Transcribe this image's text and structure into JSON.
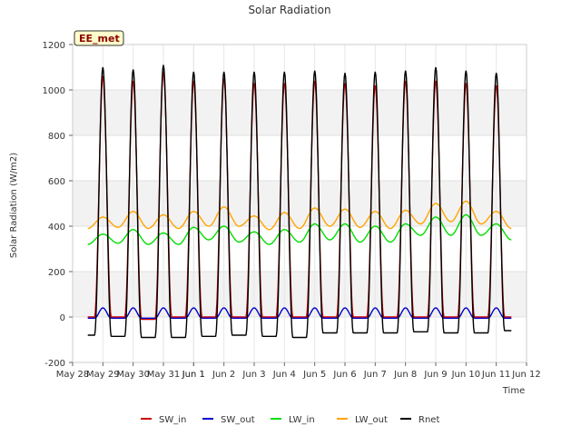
{
  "chart_data": {
    "type": "line",
    "title": "Solar Radiation",
    "xlabel": "Time",
    "ylabel": "Solar Radiation (W/m2)",
    "ylim": [
      -200,
      1200
    ],
    "yticks": [
      -200,
      0,
      200,
      400,
      600,
      800,
      1000,
      1200
    ],
    "xlim": [
      "2023-05-28",
      "2023-06-12"
    ],
    "xtick_labels": [
      "May 28",
      "May 29",
      "May 30",
      "May 31",
      "Jun 1",
      "Jun 1",
      "Jun 2",
      "Jun 3",
      "Jun 4",
      "Jun 5",
      "Jun 6",
      "Jun 7",
      "Jun 8",
      "Jun 9",
      "Jun 10",
      "Jun 11",
      "Jun 12"
    ],
    "xtick_positions": [
      "2023-05-28",
      "2023-05-29",
      "2023-05-30",
      "2023-05-31",
      "2023-06-01",
      "2023-06-01",
      "2023-06-02",
      "2023-06-03",
      "2023-06-04",
      "2023-06-05",
      "2023-06-06",
      "2023-06-07",
      "2023-06-08",
      "2023-06-09",
      "2023-06-10",
      "2023-06-11",
      "2023-06-12"
    ],
    "grid": true,
    "legend_position": "bottom",
    "annotation": "EE_met",
    "series": [
      {
        "name": "SW_in",
        "color": "#cc0000",
        "points": [
          [
            "2023-05-28 12:00",
            0
          ],
          [
            "2023-05-29 00:00",
            1060
          ],
          [
            "2023-05-29 12:00",
            0
          ],
          [
            "2023-05-30 00:00",
            1040
          ],
          [
            "2023-05-30 12:00",
            -10
          ],
          [
            "2023-05-31 00:00",
            1080
          ],
          [
            "2023-05-31 12:00",
            0
          ],
          [
            "2023-06-01 00:00",
            1040
          ],
          [
            "2023-06-01 12:00",
            0
          ],
          [
            "2023-06-02 00:00",
            1050
          ],
          [
            "2023-06-02 12:00",
            0
          ],
          [
            "2023-06-03 00:00",
            1030
          ],
          [
            "2023-06-03 12:00",
            0
          ],
          [
            "2023-06-04 00:00",
            1030
          ],
          [
            "2023-06-04 12:00",
            0
          ],
          [
            "2023-06-05 00:00",
            1040
          ],
          [
            "2023-06-05 12:00",
            0
          ],
          [
            "2023-06-06 00:00",
            1030
          ],
          [
            "2023-06-06 12:00",
            0
          ],
          [
            "2023-06-07 00:00",
            1020
          ],
          [
            "2023-06-07 12:00",
            0
          ],
          [
            "2023-06-08 00:00",
            1040
          ],
          [
            "2023-06-08 12:00",
            0
          ],
          [
            "2023-06-09 00:00",
            1040
          ],
          [
            "2023-06-09 12:00",
            0
          ],
          [
            "2023-06-10 00:00",
            1030
          ],
          [
            "2023-06-10 12:00",
            0
          ],
          [
            "2023-06-11 00:00",
            1020
          ],
          [
            "2023-06-11 12:00",
            0
          ]
        ]
      },
      {
        "name": "SW_out",
        "color": "#0000cc",
        "points": [
          [
            "2023-05-28 12:00",
            -5
          ],
          [
            "2023-05-29 00:00",
            40
          ],
          [
            "2023-05-29 12:00",
            -5
          ],
          [
            "2023-05-30 00:00",
            40
          ],
          [
            "2023-05-30 12:00",
            -5
          ],
          [
            "2023-05-31 00:00",
            40
          ],
          [
            "2023-05-31 12:00",
            -5
          ],
          [
            "2023-06-01 00:00",
            40
          ],
          [
            "2023-06-01 12:00",
            -5
          ],
          [
            "2023-06-02 00:00",
            40
          ],
          [
            "2023-06-02 12:00",
            -5
          ],
          [
            "2023-06-03 00:00",
            40
          ],
          [
            "2023-06-03 12:00",
            -5
          ],
          [
            "2023-06-04 00:00",
            40
          ],
          [
            "2023-06-04 12:00",
            -5
          ],
          [
            "2023-06-05 00:00",
            40
          ],
          [
            "2023-06-05 12:00",
            -5
          ],
          [
            "2023-06-06 00:00",
            40
          ],
          [
            "2023-06-06 12:00",
            -5
          ],
          [
            "2023-06-07 00:00",
            40
          ],
          [
            "2023-06-07 12:00",
            -5
          ],
          [
            "2023-06-08 00:00",
            40
          ],
          [
            "2023-06-08 12:00",
            -5
          ],
          [
            "2023-06-09 00:00",
            40
          ],
          [
            "2023-06-09 12:00",
            -5
          ],
          [
            "2023-06-10 00:00",
            40
          ],
          [
            "2023-06-10 12:00",
            -5
          ],
          [
            "2023-06-11 00:00",
            40
          ],
          [
            "2023-06-11 12:00",
            -5
          ]
        ]
      },
      {
        "name": "LW_in",
        "color": "#00dd00",
        "points": [
          [
            "2023-05-28 12:00",
            320
          ],
          [
            "2023-05-29 00:00",
            365
          ],
          [
            "2023-05-29 12:00",
            325
          ],
          [
            "2023-05-30 00:00",
            385
          ],
          [
            "2023-05-30 12:00",
            320
          ],
          [
            "2023-05-31 00:00",
            370
          ],
          [
            "2023-05-31 12:00",
            320
          ],
          [
            "2023-06-01 00:00",
            395
          ],
          [
            "2023-06-01 12:00",
            340
          ],
          [
            "2023-06-02 00:00",
            400
          ],
          [
            "2023-06-02 12:00",
            330
          ],
          [
            "2023-06-03 00:00",
            375
          ],
          [
            "2023-06-03 12:00",
            320
          ],
          [
            "2023-06-04 00:00",
            385
          ],
          [
            "2023-06-04 12:00",
            330
          ],
          [
            "2023-06-05 00:00",
            410
          ],
          [
            "2023-06-05 12:00",
            340
          ],
          [
            "2023-06-06 00:00",
            410
          ],
          [
            "2023-06-06 12:00",
            330
          ],
          [
            "2023-06-07 00:00",
            400
          ],
          [
            "2023-06-07 12:00",
            330
          ],
          [
            "2023-06-08 00:00",
            410
          ],
          [
            "2023-06-08 12:00",
            360
          ],
          [
            "2023-06-09 00:00",
            440
          ],
          [
            "2023-06-09 12:00",
            360
          ],
          [
            "2023-06-10 00:00",
            450
          ],
          [
            "2023-06-10 12:00",
            360
          ],
          [
            "2023-06-11 00:00",
            410
          ],
          [
            "2023-06-11 12:00",
            340
          ]
        ]
      },
      {
        "name": "LW_out",
        "color": "#ffa500",
        "points": [
          [
            "2023-05-28 12:00",
            390
          ],
          [
            "2023-05-29 00:00",
            440
          ],
          [
            "2023-05-29 12:00",
            395
          ],
          [
            "2023-05-30 00:00",
            465
          ],
          [
            "2023-05-30 12:00",
            390
          ],
          [
            "2023-05-31 00:00",
            450
          ],
          [
            "2023-05-31 12:00",
            390
          ],
          [
            "2023-06-01 00:00",
            465
          ],
          [
            "2023-06-01 12:00",
            400
          ],
          [
            "2023-06-02 00:00",
            485
          ],
          [
            "2023-06-02 12:00",
            400
          ],
          [
            "2023-06-03 00:00",
            445
          ],
          [
            "2023-06-03 12:00",
            385
          ],
          [
            "2023-06-04 00:00",
            460
          ],
          [
            "2023-06-04 12:00",
            390
          ],
          [
            "2023-06-05 00:00",
            480
          ],
          [
            "2023-06-05 12:00",
            400
          ],
          [
            "2023-06-06 00:00",
            475
          ],
          [
            "2023-06-06 12:00",
            395
          ],
          [
            "2023-06-07 00:00",
            465
          ],
          [
            "2023-06-07 12:00",
            390
          ],
          [
            "2023-06-08 00:00",
            470
          ],
          [
            "2023-06-08 12:00",
            410
          ],
          [
            "2023-06-09 00:00",
            500
          ],
          [
            "2023-06-09 12:00",
            420
          ],
          [
            "2023-06-10 00:00",
            510
          ],
          [
            "2023-06-10 12:00",
            410
          ],
          [
            "2023-06-11 00:00",
            465
          ],
          [
            "2023-06-11 12:00",
            390
          ]
        ]
      },
      {
        "name": "Rnet",
        "color": "#000000",
        "points": [
          [
            "2023-05-28 12:00",
            -80
          ],
          [
            "2023-05-29 00:00",
            1100
          ],
          [
            "2023-05-29 12:00",
            -85
          ],
          [
            "2023-05-30 00:00",
            1090
          ],
          [
            "2023-05-30 12:00",
            -90
          ],
          [
            "2023-05-31 00:00",
            1110
          ],
          [
            "2023-05-31 12:00",
            -90
          ],
          [
            "2023-06-01 00:00",
            1080
          ],
          [
            "2023-06-01 12:00",
            -85
          ],
          [
            "2023-06-02 00:00",
            1080
          ],
          [
            "2023-06-02 12:00",
            -80
          ],
          [
            "2023-06-03 00:00",
            1080
          ],
          [
            "2023-06-03 12:00",
            -85
          ],
          [
            "2023-06-04 00:00",
            1080
          ],
          [
            "2023-06-04 12:00",
            -90
          ],
          [
            "2023-06-05 00:00",
            1085
          ],
          [
            "2023-06-05 12:00",
            -70
          ],
          [
            "2023-06-06 00:00",
            1075
          ],
          [
            "2023-06-06 12:00",
            -70
          ],
          [
            "2023-06-07 00:00",
            1080
          ],
          [
            "2023-06-07 12:00",
            -70
          ],
          [
            "2023-06-08 00:00",
            1085
          ],
          [
            "2023-06-08 12:00",
            -65
          ],
          [
            "2023-06-09 00:00",
            1100
          ],
          [
            "2023-06-09 12:00",
            -70
          ],
          [
            "2023-06-10 00:00",
            1085
          ],
          [
            "2023-06-10 12:00",
            -70
          ],
          [
            "2023-06-11 00:00",
            1075
          ],
          [
            "2023-06-11 12:00",
            -60
          ]
        ]
      }
    ]
  }
}
